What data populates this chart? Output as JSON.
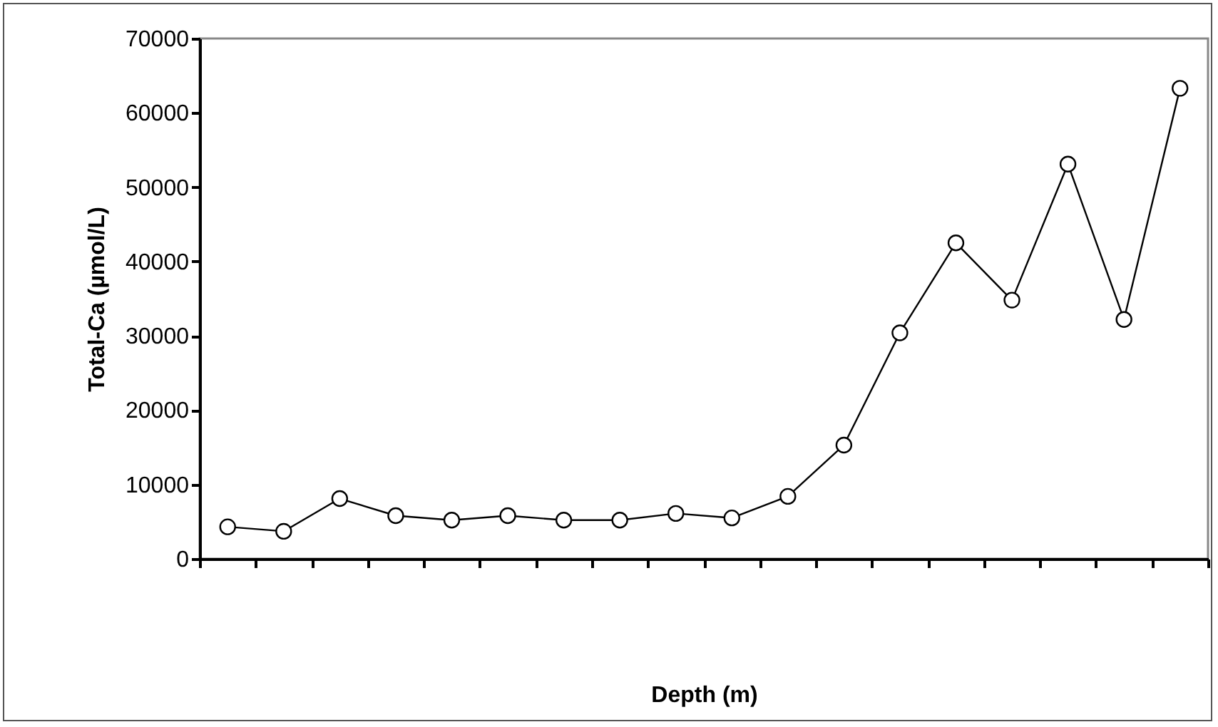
{
  "chart_data": {
    "type": "line",
    "xlabel": "Depth (m)",
    "ylabel": "Total-Ca (µmol/L)",
    "categories": [
      null,
      null,
      null,
      null,
      null,
      null,
      null,
      null,
      null,
      null,
      null,
      null,
      null,
      null,
      null,
      null,
      null,
      null
    ],
    "values": [
      4300,
      3700,
      8100,
      5800,
      5200,
      5800,
      5200,
      5200,
      6100,
      5500,
      8400,
      15300,
      30400,
      42500,
      34800,
      53100,
      32200,
      63300
    ],
    "color": "#000000",
    "ylim": [
      0,
      70000
    ],
    "yticks": [
      0,
      10000,
      20000,
      30000,
      40000,
      50000,
      60000,
      70000
    ],
    "grid": false,
    "marker": "circle",
    "line_style": "solid",
    "tick_labels": "y"
  }
}
